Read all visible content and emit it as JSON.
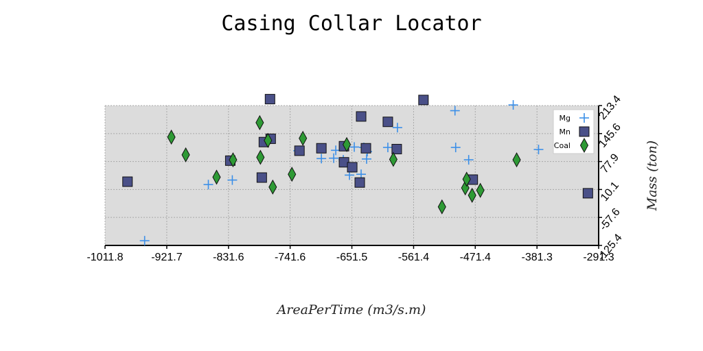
{
  "chart_data": {
    "type": "scatter",
    "title": "Casing Collar Locator",
    "xlabel": "AreaPerTime (m3/s.m)",
    "ylabel": "Mass (ton)",
    "xlim": [
      -1011.8,
      -291.3
    ],
    "ylim": [
      -125.4,
      213.4
    ],
    "xticks": [
      "-1011.8",
      "-921.7",
      "-831.6",
      "-741.6",
      "-651.5",
      "-561.4",
      "-471.4",
      "-381.3",
      "-291.3"
    ],
    "yticks": [
      "-125.4",
      "-57.6",
      "10.1",
      "77.9",
      "145.6",
      "213.4"
    ],
    "grid": true,
    "legend_position": "top-right",
    "colors": {
      "Mg": "#3b8fe8",
      "Mn": "#4a5088",
      "Coal": "#2e9a35",
      "plot_bg": "#dcdcdc"
    },
    "series": [
      {
        "name": "Mg",
        "marker": "plus",
        "x": [
          -954,
          -861,
          -826,
          -730,
          -696,
          -678,
          -675,
          -664,
          -655,
          -648,
          -638,
          -634,
          -630,
          -629,
          -599,
          -585,
          -501,
          -500,
          -481,
          -416,
          -379
        ],
        "y": [
          -114,
          22,
          33,
          104,
          85,
          86,
          105,
          82,
          45,
          113,
          47,
          112,
          84,
          102,
          112,
          160,
          201,
          112,
          82,
          215,
          107
        ]
      },
      {
        "name": "Mn",
        "marker": "square",
        "x": [
          -979,
          -829,
          -783,
          -780,
          -771,
          -770,
          -728,
          -696,
          -663,
          -663,
          -651,
          -640,
          -638,
          -631,
          -599,
          -586,
          -547,
          -475,
          -343,
          -307
        ],
        "y": [
          29,
          80,
          39,
          125,
          229,
          133,
          104,
          110,
          76,
          115,
          64,
          27,
          187,
          110,
          174,
          108,
          227,
          34,
          126,
          1
        ]
      },
      {
        "name": "Coal",
        "marker": "diamond",
        "x": [
          -915,
          -894,
          -849,
          -825,
          -786,
          -785,
          -774,
          -767,
          -739,
          -723,
          -659,
          -591,
          -520,
          -486,
          -484,
          -476,
          -464,
          -411
        ],
        "y": [
          137,
          94,
          40,
          82,
          172,
          88,
          129,
          16,
          47,
          134,
          119,
          83,
          -32,
          14,
          35,
          -4,
          8,
          82
        ]
      }
    ]
  }
}
